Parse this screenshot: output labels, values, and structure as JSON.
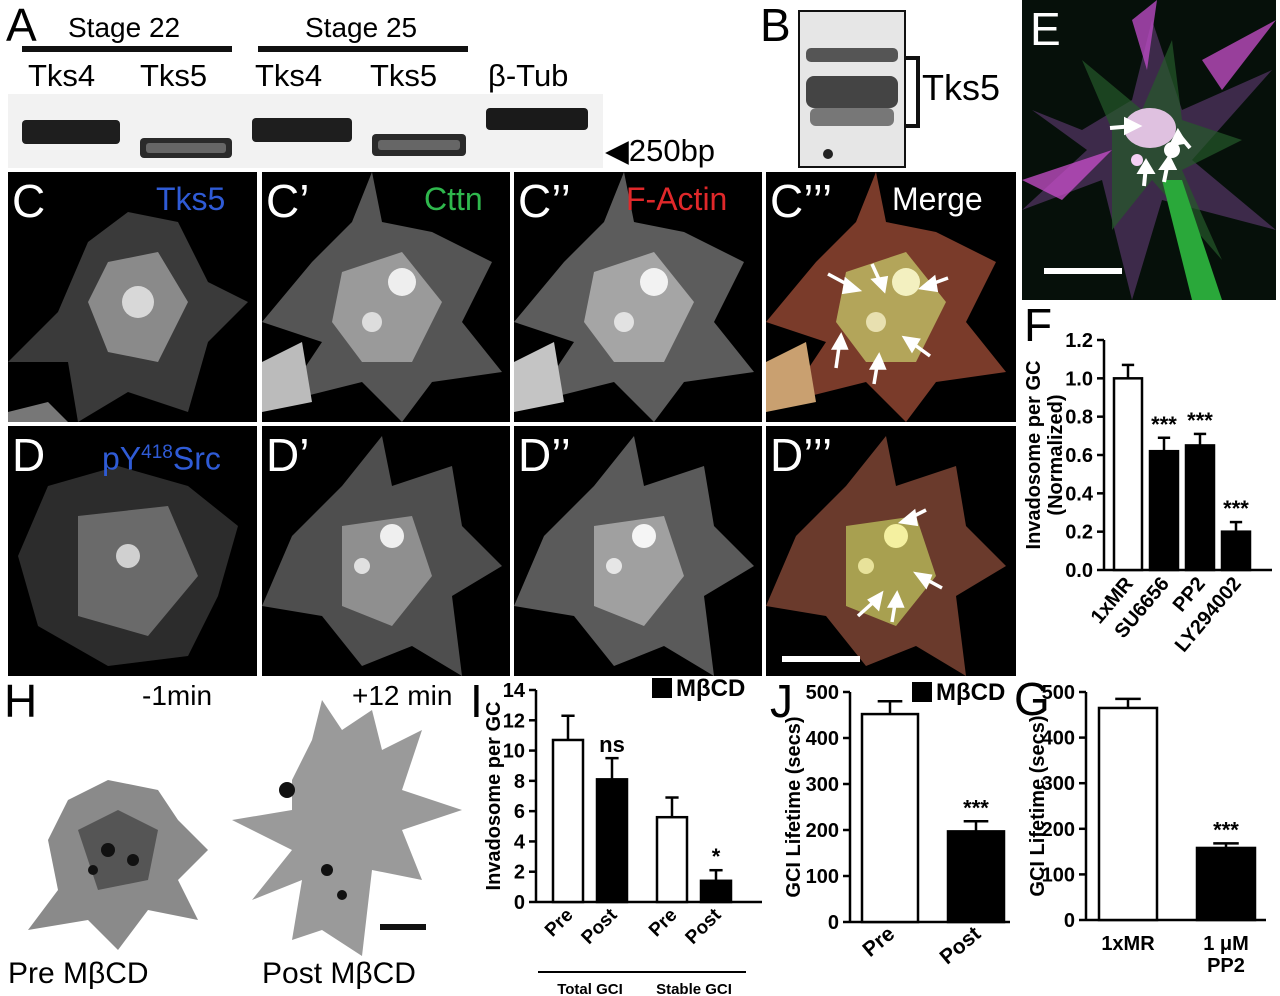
{
  "panel_letters": {
    "A": "A",
    "B": "B",
    "C": "C",
    "C1": "C’",
    "C2": "C’’",
    "C3": "C’’’",
    "D": "D",
    "D1": "D’",
    "D2": "D’’",
    "D3": "D’’’",
    "E": "E",
    "F": "F",
    "G": "G",
    "H": "H",
    "I": "I",
    "J": "J"
  },
  "panel_a": {
    "stage1": "Stage 22",
    "stage2": "Stage 25",
    "lanes": [
      "Tks4",
      "Tks5",
      "Tks4",
      "Tks5",
      "β-Tub"
    ],
    "marker": "◀250bp"
  },
  "panel_b": {
    "label": "Tks5"
  },
  "panel_c_labels": {
    "c": "Tks5",
    "c1": "Cttn",
    "c2": "F-Actin",
    "c3": "Merge"
  },
  "panel_d_labels": {
    "d": "pY",
    "d_sup": "418",
    "d_rest": "Src"
  },
  "panel_h": {
    "t1": "-1min",
    "t2": "+12 min",
    "c1": "Pre MβCD",
    "c2": "Post MβCD"
  },
  "chart_data": [
    {
      "id": "F",
      "type": "bar",
      "ylabel": "Invadosome per GC (Normalized)",
      "categories": [
        "1xMR",
        "SU6656",
        "PP2",
        "LY294002"
      ],
      "values": [
        1.0,
        0.62,
        0.65,
        0.2
      ],
      "errors": [
        0.07,
        0.07,
        0.06,
        0.05
      ],
      "fills": [
        "#ffffff",
        "#000000",
        "#000000",
        "#000000"
      ],
      "significance": [
        "",
        "***",
        "***",
        "***"
      ],
      "ylim": [
        0,
        1.2
      ],
      "yticks": [
        "0.0",
        "0.2",
        "0.4",
        "0.6",
        "0.8",
        "1.0",
        "1.2"
      ]
    },
    {
      "id": "G",
      "type": "bar",
      "ylabel": "GCI Lifetime (secs)",
      "categories": [
        "1xMR",
        "1 μM PP2"
      ],
      "values": [
        465,
        158
      ],
      "errors": [
        20,
        10
      ],
      "fills": [
        "#ffffff",
        "#000000"
      ],
      "significance": [
        "",
        "***"
      ],
      "ylim": [
        0,
        500
      ],
      "yticks": [
        "0",
        "100",
        "200",
        "300",
        "400",
        "500"
      ]
    },
    {
      "id": "I",
      "type": "bar",
      "ylabel": "Invadosome per GC",
      "legend": "MβCD",
      "categories": [
        "Pre",
        "Post",
        "Pre",
        "Post"
      ],
      "groups": [
        "Total GCI",
        "Stable GCI"
      ],
      "values": [
        10.7,
        8.1,
        5.6,
        1.4
      ],
      "errors": [
        1.6,
        1.4,
        1.3,
        0.7
      ],
      "fills": [
        "#ffffff",
        "#000000",
        "#ffffff",
        "#000000"
      ],
      "significance": [
        "",
        "ns",
        "",
        "*"
      ],
      "ylim": [
        0,
        14
      ],
      "yticks": [
        "0",
        "2",
        "4",
        "6",
        "8",
        "10",
        "12",
        "14"
      ]
    },
    {
      "id": "J",
      "type": "bar",
      "ylabel": "GCI Lifetime (secs)",
      "legend": "MβCD",
      "categories": [
        "Pre",
        "Post"
      ],
      "values": [
        452,
        197
      ],
      "errors": [
        28,
        22
      ],
      "fills": [
        "#ffffff",
        "#000000"
      ],
      "significance": [
        "",
        "***"
      ],
      "ylim": [
        0,
        500
      ],
      "yticks": [
        "0",
        "100",
        "200",
        "300",
        "400",
        "500"
      ]
    }
  ]
}
